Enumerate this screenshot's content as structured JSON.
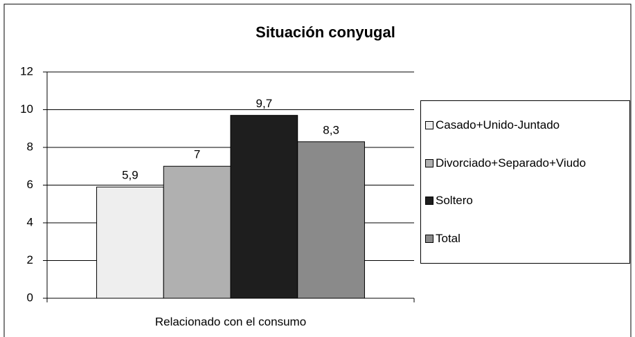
{
  "chart_data": {
    "type": "bar",
    "title": "Situación conyugal",
    "x_label": "Relacionado con el consumo",
    "categories": [
      "Relacionado con el consumo"
    ],
    "series": [
      {
        "name": "Casado+Unido-Juntado",
        "color": "#eeeeee",
        "values": [
          5.9
        ],
        "value_labels": [
          "5,9"
        ]
      },
      {
        "name": "Divorciado+Separado+Viudo",
        "color": "#b0b0b0",
        "values": [
          7
        ],
        "value_labels": [
          "7"
        ]
      },
      {
        "name": "Soltero",
        "color": "#1e1e1e",
        "values": [
          9.7
        ],
        "value_labels": [
          "9,7"
        ]
      },
      {
        "name": "Total",
        "color": "#8a8a8a",
        "values": [
          8.3
        ],
        "value_labels": [
          "8,3"
        ]
      }
    ],
    "ylim": [
      0,
      12
    ],
    "yticks": [
      0,
      2,
      4,
      6,
      8,
      10,
      12
    ],
    "grid": true,
    "legend": "right"
  }
}
